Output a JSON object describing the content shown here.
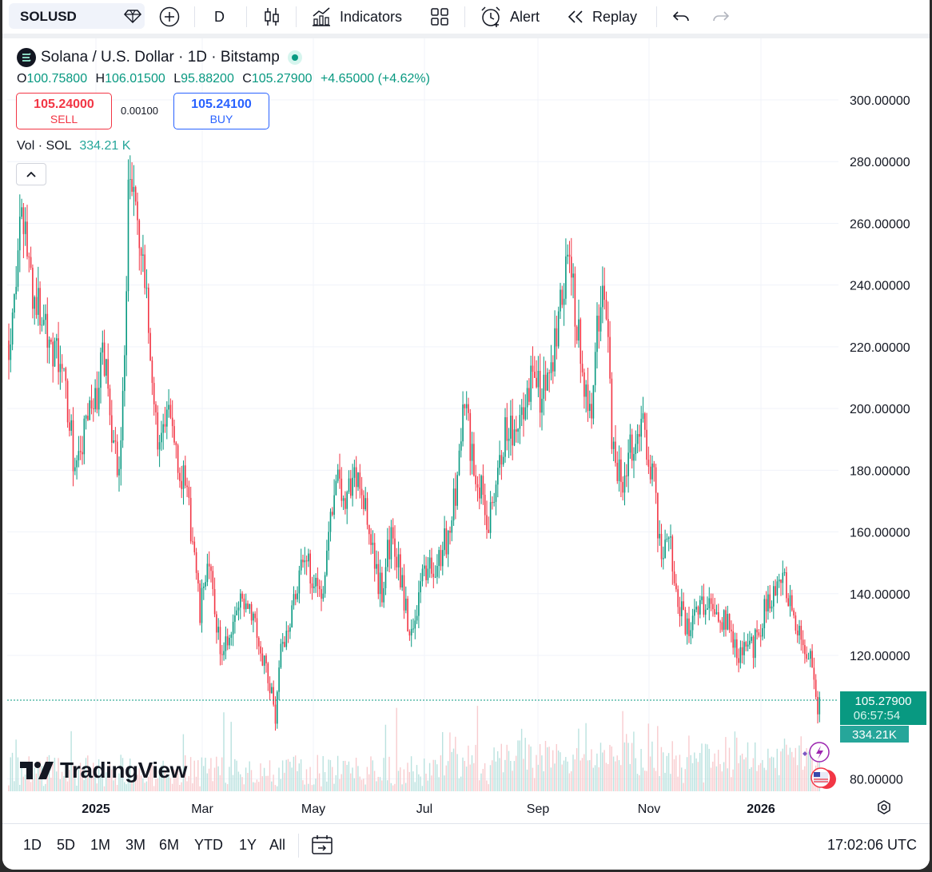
{
  "toolbar": {
    "symbol": "SOLUSD",
    "interval": "D",
    "indicators": "Indicators",
    "alert": "Alert",
    "replay": "Replay"
  },
  "legend": {
    "title": "Solana / U.S. Dollar · 1D · Bitstamp",
    "o_label": "O",
    "o_value": "100.75800",
    "h_label": "H",
    "h_value": "106.01500",
    "l_label": "L",
    "l_value": "95.88200",
    "c_label": "C",
    "c_value": "105.27900",
    "change": "+4.65000 (+4.62%)"
  },
  "trade": {
    "sell_price": "105.24000",
    "sell_label": "SELL",
    "spread": "0.00100",
    "buy_price": "105.24100",
    "buy_label": "BUY"
  },
  "volume_legend": {
    "label": "Vol · SOL",
    "value": "334.21 K"
  },
  "price_axis": {
    "ticks": [
      "300.00000",
      "280.00000",
      "260.00000",
      "240.00000",
      "220.00000",
      "200.00000",
      "180.00000",
      "160.00000",
      "140.00000",
      "120.00000",
      "80.00000"
    ],
    "last_price": "105.27900",
    "countdown": "06:57:54",
    "last_volume": "334.21K"
  },
  "time_axis": {
    "ticks": [
      "2025",
      "Mar",
      "May",
      "Jul",
      "Sep",
      "Nov",
      "2026"
    ]
  },
  "logo_text": "TradingView",
  "ranges": [
    "1D",
    "5D",
    "1M",
    "3M",
    "6M",
    "YTD",
    "1Y",
    "All"
  ],
  "clock": "17:02:06 UTC",
  "colors": {
    "up": "#089981",
    "down": "#f23645",
    "accent": "#2962ff"
  },
  "chart_data": {
    "type": "candlestick",
    "ylim": [
      75,
      305
    ],
    "x_range": [
      "2024-11",
      "2026-02"
    ],
    "closes_monthly_approx": [
      {
        "date": "2024-11",
        "close": 235
      },
      {
        "date": "2024-12",
        "close": 190
      },
      {
        "date": "2025-01",
        "close": 240
      },
      {
        "date": "2025-02",
        "close": 170
      },
      {
        "date": "2025-03",
        "close": 125
      },
      {
        "date": "2025-04",
        "close": 145
      },
      {
        "date": "2025-05",
        "close": 170
      },
      {
        "date": "2025-06",
        "close": 150
      },
      {
        "date": "2025-07",
        "close": 185
      },
      {
        "date": "2025-08",
        "close": 205
      },
      {
        "date": "2025-09",
        "close": 210
      },
      {
        "date": "2025-10",
        "close": 185
      },
      {
        "date": "2025-11",
        "close": 135
      },
      {
        "date": "2025-12",
        "close": 125
      },
      {
        "date": "2026-01",
        "close": 120
      },
      {
        "date": "2026-02",
        "close": 105
      }
    ]
  }
}
